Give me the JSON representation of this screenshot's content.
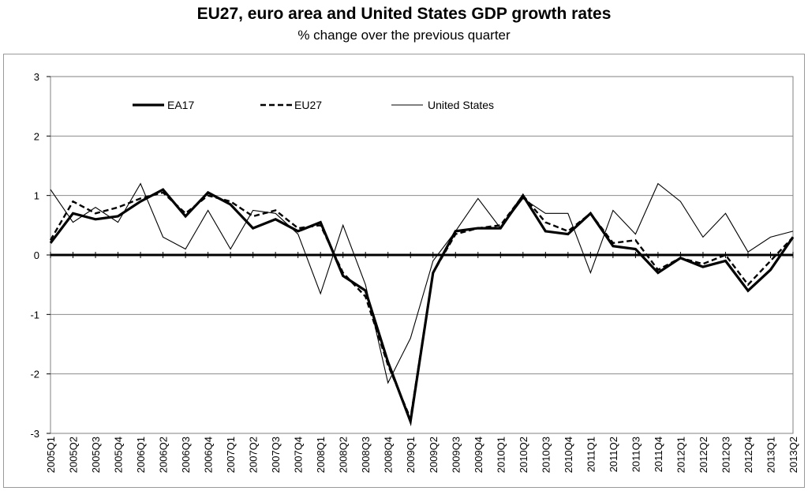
{
  "chart_data": {
    "type": "line",
    "title": "EU27, euro area and United States GDP growth rates",
    "subtitle": "% change over the previous quarter",
    "xlabel": "",
    "ylabel": "",
    "ylim": [
      -3,
      3
    ],
    "yticks": [
      "3",
      "2",
      "1",
      "0",
      "-1",
      "-2",
      "-3"
    ],
    "grid": true,
    "legend_position": "top-left",
    "categories": [
      "2005Q1",
      "2005Q2",
      "2005Q3",
      "2005Q4",
      "2006Q1",
      "2006Q2",
      "2006Q3",
      "2006Q4",
      "2007Q1",
      "2007Q2",
      "2007Q3",
      "2007Q4",
      "2008Q1",
      "2008Q2",
      "2008Q3",
      "2008Q4",
      "2009Q1",
      "2009Q2",
      "2009Q3",
      "2009Q4",
      "2010Q1",
      "2010Q2",
      "2010Q3",
      "2010Q4",
      "2011Q1",
      "2011Q2",
      "2011Q3",
      "2011Q4",
      "2012Q1",
      "2012Q2",
      "2012Q3",
      "2012Q4",
      "2013Q1",
      "2013Q2"
    ],
    "series": [
      {
        "name": "EA17",
        "style": "thick",
        "color": "#000000",
        "values": [
          0.2,
          0.7,
          0.6,
          0.65,
          0.9,
          1.1,
          0.65,
          1.05,
          0.85,
          0.45,
          0.6,
          0.4,
          0.55,
          -0.35,
          -0.6,
          -1.8,
          -2.8,
          -0.3,
          0.4,
          0.45,
          0.45,
          1.0,
          0.4,
          0.35,
          0.7,
          0.15,
          0.1,
          -0.3,
          -0.05,
          -0.2,
          -0.1,
          -0.6,
          -0.25,
          0.3
        ]
      },
      {
        "name": "EU27",
        "style": "dashed",
        "color": "#000000",
        "values": [
          0.25,
          0.9,
          0.7,
          0.8,
          0.95,
          1.05,
          0.7,
          1.0,
          0.9,
          0.65,
          0.75,
          0.45,
          0.5,
          -0.3,
          -0.7,
          -1.85,
          -2.75,
          -0.3,
          0.35,
          0.45,
          0.5,
          1.0,
          0.55,
          0.4,
          0.7,
          0.2,
          0.25,
          -0.25,
          -0.05,
          -0.15,
          0.0,
          -0.5,
          -0.1,
          0.3
        ]
      },
      {
        "name": "United States",
        "style": "thin",
        "color": "#000000",
        "values": [
          1.1,
          0.55,
          0.8,
          0.55,
          1.2,
          0.3,
          0.1,
          0.75,
          0.1,
          0.75,
          0.7,
          0.35,
          -0.65,
          0.5,
          -0.5,
          -2.15,
          -1.4,
          -0.1,
          0.4,
          0.95,
          0.45,
          0.95,
          0.7,
          0.7,
          -0.3,
          0.75,
          0.35,
          1.2,
          0.9,
          0.3,
          0.7,
          0.05,
          0.3,
          0.4
        ]
      }
    ]
  }
}
